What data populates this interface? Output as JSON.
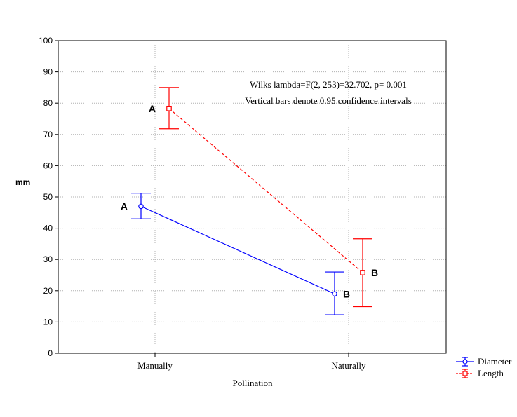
{
  "chart_data": {
    "type": "line",
    "xlabel": "Pollination",
    "ylabel": "mm",
    "ylim": [
      0,
      100
    ],
    "yticks": [
      0,
      10,
      20,
      30,
      40,
      50,
      60,
      70,
      80,
      90,
      100
    ],
    "categories": [
      "Manually",
      "Naturally"
    ],
    "grid": true,
    "annotations": [
      "Wilks lambda=F(2, 253)=32.702, p= 0.001",
      "Vertical bars denote 0.95 confidence intervals"
    ],
    "legend_position": "bottom-right, outside plot",
    "series": [
      {
        "name": "Diameter",
        "color": "#0000ff",
        "line_style": "solid",
        "marker": "circle",
        "values": [
          47,
          19
        ],
        "ci_lower": [
          43,
          12.3
        ],
        "ci_upper": [
          51.2,
          26
        ],
        "group_labels": [
          "A",
          "B"
        ]
      },
      {
        "name": "Length",
        "color": "#ff0000",
        "line_style": "dashed",
        "marker": "square",
        "values": [
          78.3,
          25.8
        ],
        "ci_lower": [
          71.8,
          14.9
        ],
        "ci_upper": [
          85,
          36.6
        ],
        "group_labels": [
          "A",
          "B"
        ]
      }
    ]
  }
}
